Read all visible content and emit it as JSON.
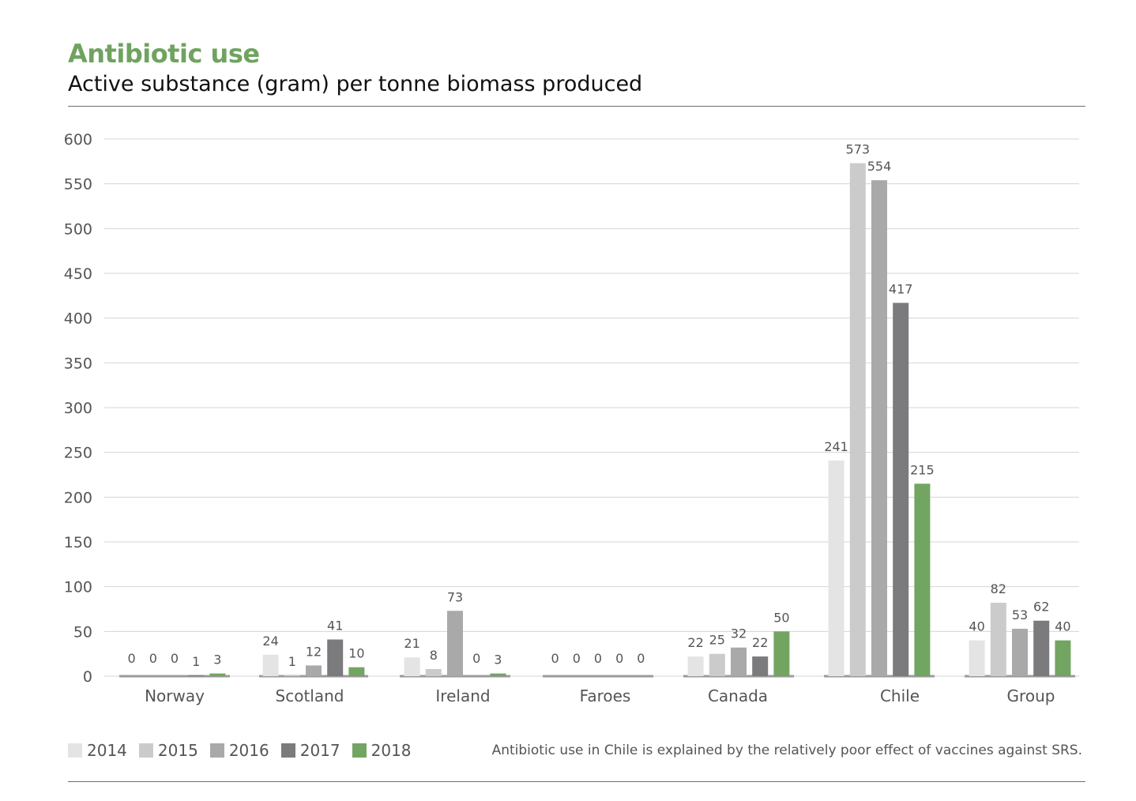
{
  "header": {
    "title": "Antibiotic use",
    "subtitle": "Active substance (gram) per tonne biomass produced"
  },
  "footer": {
    "note": "Antibiotic use in Chile is explained by the relatively poor effect of vaccines against SRS."
  },
  "legend": [
    {
      "label": "2014",
      "color": "#e4e4e4"
    },
    {
      "label": "2015",
      "color": "#cbcbcb"
    },
    {
      "label": "2016",
      "color": "#a9a9aa"
    },
    {
      "label": "2017",
      "color": "#7b7b7d"
    },
    {
      "label": "2018",
      "color": "#72a562"
    }
  ],
  "chart_data": {
    "type": "bar",
    "title": "Antibiotic use",
    "subtitle": "Active substance (gram) per tonne biomass produced",
    "xlabel": "",
    "ylabel": "",
    "categories": [
      "Norway",
      "Scotland",
      "Ireland",
      "Faroes",
      "Canada",
      "Chile",
      "Group"
    ],
    "series": [
      {
        "name": "2014",
        "color": "#e4e4e4",
        "values": [
          0,
          24,
          21,
          0,
          22,
          241,
          40
        ]
      },
      {
        "name": "2015",
        "color": "#cbcbcb",
        "values": [
          0,
          1,
          8,
          0,
          25,
          573,
          82
        ]
      },
      {
        "name": "2016",
        "color": "#a9a9aa",
        "values": [
          0,
          12,
          73,
          0,
          32,
          554,
          53
        ]
      },
      {
        "name": "2017",
        "color": "#7b7b7d",
        "values": [
          1,
          41,
          0,
          0,
          22,
          417,
          62
        ]
      },
      {
        "name": "2018",
        "color": "#72a562",
        "values": [
          3,
          10,
          3,
          0,
          50,
          215,
          40
        ]
      }
    ],
    "ylim": [
      0,
      600
    ],
    "yticks": [
      0,
      50,
      100,
      150,
      200,
      250,
      300,
      350,
      400,
      450,
      500,
      550,
      600
    ],
    "grid": true,
    "legend_position": "bottom-left",
    "data_labels": true
  }
}
